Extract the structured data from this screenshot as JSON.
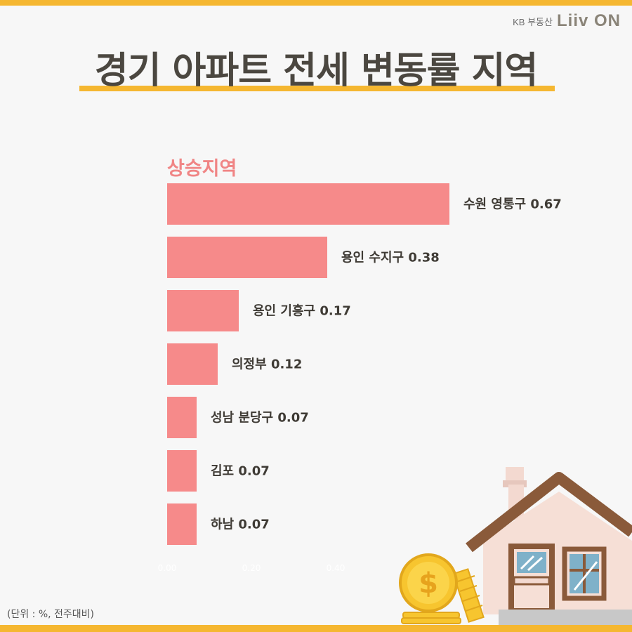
{
  "brand": {
    "kb_text": "KB 부동산",
    "logo_text": "Liiv ON"
  },
  "page": {
    "title": "경기 아파트 전세 변동률 지역",
    "note": "(단위 : %, 전주대비)"
  },
  "colors": {
    "bar": "#f68a8a",
    "accent": "#f5b731",
    "title": "#4b4740",
    "subtitle": "#f08585"
  },
  "chart_data": {
    "type": "bar",
    "orientation": "horizontal",
    "title": "상승지역",
    "categories": [
      "수원 영통구",
      "용인 수지구",
      "용인 기흥구",
      "의정부",
      "성남 분당구",
      "김포",
      "하남"
    ],
    "values": [
      0.67,
      0.38,
      0.17,
      0.12,
      0.07,
      0.07,
      0.07
    ],
    "bar_labels": [
      "수원 영통구 0.67",
      "용인 수지구 0.38",
      "용인 기흥구 0.17",
      "의정부 0.12",
      "성남 분당구 0.07",
      "김포 0.07",
      "하남 0.07"
    ],
    "x_ticks": [
      "0.00",
      "0.20",
      "0.40"
    ],
    "xlim": [
      0,
      0.7
    ],
    "grid": false,
    "legend": "none"
  }
}
